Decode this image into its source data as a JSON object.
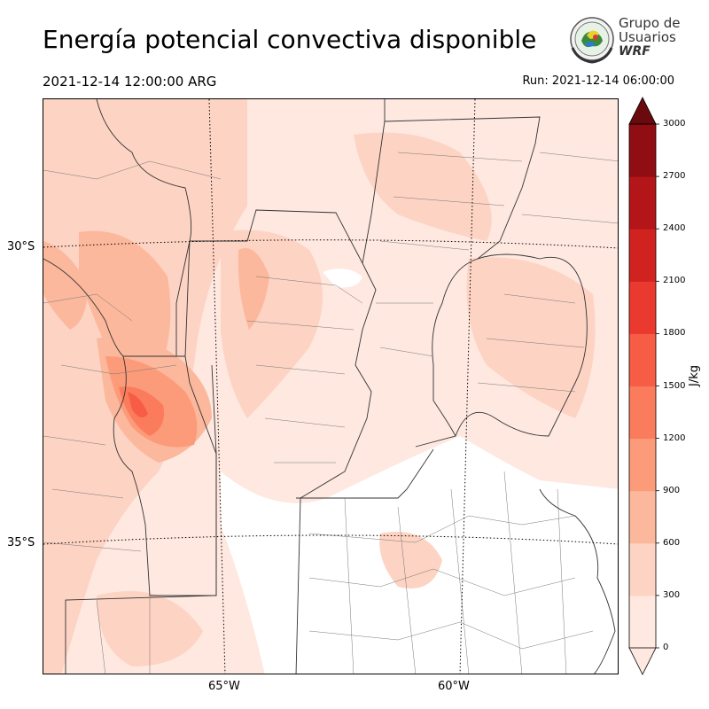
{
  "title": "Energía potencial convectiva disponible",
  "valid_time": "2021-12-14 12:00:00 ARG",
  "run_time": "Run: 2021-12-14 06:00:00",
  "logo": {
    "line1": "Grupo de",
    "line2": "Usuarios",
    "line3": "WRF"
  },
  "map": {
    "lat_labels": [
      "30°S",
      "35°S"
    ],
    "lon_labels": [
      "65°W",
      "60°W"
    ]
  },
  "colorbar": {
    "units": "J/kg",
    "ticks": [
      "0",
      "300",
      "600",
      "900",
      "1200",
      "1500",
      "1800",
      "2100",
      "2400",
      "2700",
      "3000"
    ],
    "colors": [
      "#fee8e0",
      "#fdd3c3",
      "#fcb89c",
      "#fc9b7a",
      "#fb7c5c",
      "#f75c44",
      "#ea3a30",
      "#d0231f",
      "#b31519",
      "#8f0d13",
      "#6a0a0e"
    ]
  }
}
